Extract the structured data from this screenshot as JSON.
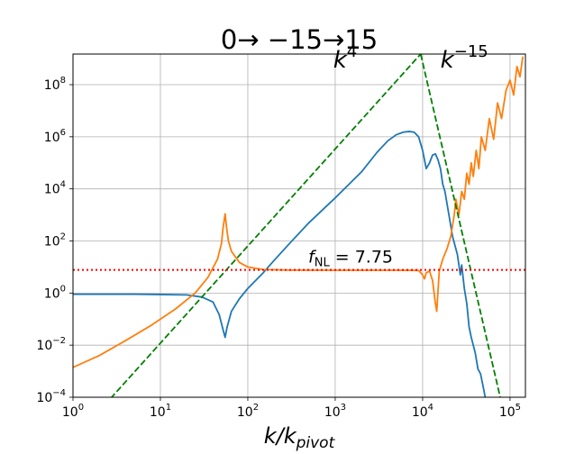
{
  "chart_data": {
    "type": "line",
    "title": "0→ −15→15",
    "xlabel": "k/k",
    "xlabel_sub": "pivot",
    "ylabel": "",
    "xscale": "log",
    "yscale": "log",
    "xlim": [
      1,
      150000
    ],
    "ylim": [
      0.0001,
      1500000000.0
    ],
    "grid": true,
    "x_ticks": [
      {
        "base": "10",
        "exp": "0",
        "value": 1
      },
      {
        "base": "10",
        "exp": "1",
        "value": 10
      },
      {
        "base": "10",
        "exp": "2",
        "value": 100
      },
      {
        "base": "10",
        "exp": "3",
        "value": 1000
      },
      {
        "base": "10",
        "exp": "4",
        "value": 10000
      },
      {
        "base": "10",
        "exp": "5",
        "value": 100000
      }
    ],
    "y_ticks": [
      {
        "base": "10",
        "exp": "−4",
        "value": 0.0001
      },
      {
        "base": "10",
        "exp": "−2",
        "value": 0.01
      },
      {
        "base": "10",
        "exp": "0",
        "value": 1
      },
      {
        "base": "10",
        "exp": "2",
        "value": 100
      },
      {
        "base": "10",
        "exp": "4",
        "value": 10000
      },
      {
        "base": "10",
        "exp": "6",
        "value": 1000000
      },
      {
        "base": "10",
        "exp": "8",
        "value": 100000000
      }
    ],
    "annotations": [
      {
        "name": "annotation-k4",
        "base": "k",
        "exp": "4",
        "x": 1300,
        "y": 450000000
      },
      {
        "name": "annotation-k-15",
        "base": "k",
        "exp": "−15",
        "x": 30000,
        "y": 450000000
      }
    ],
    "fnl_label": {
      "main": "f",
      "sub": "NL",
      "rest": " = 7.75",
      "x": 1500,
      "y": 15
    },
    "series": [
      {
        "color": "#1f77b4",
        "points": [
          [
            1,
            0.9
          ],
          [
            5,
            0.9
          ],
          [
            10,
            0.88
          ],
          [
            20,
            0.85
          ],
          [
            30,
            0.7
          ],
          [
            40,
            0.45
          ],
          [
            47,
            0.15
          ],
          [
            52,
            0.04
          ],
          [
            55,
            0.02
          ],
          [
            58,
            0.05
          ],
          [
            65,
            0.2
          ],
          [
            80,
            0.6
          ],
          [
            100,
            1.5
          ],
          [
            150,
            6
          ],
          [
            200,
            18
          ],
          [
            300,
            80
          ],
          [
            500,
            500
          ],
          [
            1000,
            4500
          ],
          [
            2000,
            45000
          ],
          [
            3000,
            250000
          ],
          [
            4000,
            700000
          ],
          [
            5000,
            1200000
          ],
          [
            6000,
            1500000
          ],
          [
            7000,
            1600000
          ],
          [
            8000,
            1500000
          ],
          [
            9000,
            1000000
          ],
          [
            10000,
            300000
          ],
          [
            11000,
            60000
          ],
          [
            12000,
            100000
          ],
          [
            13000,
            200000
          ],
          [
            14000,
            220000
          ],
          [
            15000,
            130000
          ],
          [
            16000,
            60000
          ],
          [
            17000,
            15000
          ],
          [
            18000,
            8000
          ],
          [
            20000,
            1000
          ],
          [
            22000,
            150
          ],
          [
            25000,
            30
          ],
          [
            27000,
            5
          ],
          [
            28000,
            12
          ],
          [
            30000,
            1.5
          ],
          [
            32000,
            0.4
          ],
          [
            34000,
            0.05
          ],
          [
            36000,
            0.02
          ],
          [
            40000,
            0.005
          ],
          [
            43000,
            0.0012
          ],
          [
            46000,
            0.0008
          ],
          [
            50000,
            0.0002
          ],
          [
            52000,
            0.0001
          ]
        ]
      },
      {
        "color": "#ff7f0e",
        "points": [
          [
            1,
            0.0014
          ],
          [
            2,
            0.004
          ],
          [
            4,
            0.015
          ],
          [
            8,
            0.06
          ],
          [
            15,
            0.25
          ],
          [
            25,
            1
          ],
          [
            35,
            4
          ],
          [
            45,
            20
          ],
          [
            50,
            80
          ],
          [
            52,
            300
          ],
          [
            55,
            1100
          ],
          [
            57,
            350
          ],
          [
            60,
            100
          ],
          [
            65,
            40
          ],
          [
            80,
            15
          ],
          [
            100,
            10
          ],
          [
            150,
            8
          ],
          [
            300,
            7.6
          ],
          [
            1000,
            7.5
          ],
          [
            5000,
            7.5
          ],
          [
            9000,
            7.4
          ],
          [
            10000,
            5
          ],
          [
            10500,
            3.5
          ],
          [
            11000,
            6
          ],
          [
            12000,
            7
          ],
          [
            13000,
            3
          ],
          [
            14000,
            0.4
          ],
          [
            14500,
            0.2
          ],
          [
            15500,
            7
          ],
          [
            17000,
            20
          ],
          [
            19000,
            50
          ],
          [
            21000,
            150
          ],
          [
            23000,
            1000
          ],
          [
            24000,
            4000
          ],
          [
            26000,
            1000
          ],
          [
            28000,
            8000
          ],
          [
            30000,
            4000
          ],
          [
            32000,
            40000
          ],
          [
            34000,
            15000
          ],
          [
            36000,
            100000
          ],
          [
            38000,
            30000
          ],
          [
            41000,
            300000
          ],
          [
            44000,
            60000
          ],
          [
            47000,
            1000000
          ],
          [
            52000,
            300000
          ],
          [
            58000,
            5000000
          ],
          [
            65000,
            800000
          ],
          [
            72000,
            20000000
          ],
          [
            80000,
            5000000
          ],
          [
            90000,
            60000000
          ],
          [
            100000,
            150000000
          ],
          [
            110000,
            40000000
          ],
          [
            120000,
            500000000
          ],
          [
            130000,
            200000000
          ],
          [
            140000,
            1200000000
          ]
        ]
      },
      {
        "color": "#008000",
        "dash": "dashed",
        "points": [
          [
            2.3,
            5e-05
          ],
          [
            9500,
            1500000000
          ]
        ]
      },
      {
        "color": "#008000",
        "dash": "dashed",
        "points": [
          [
            9500,
            1500000000
          ],
          [
            80000,
            6e-05
          ]
        ]
      },
      {
        "color": "#ff0000",
        "dash": "dotted",
        "points": [
          [
            1,
            7.75
          ],
          [
            150000,
            7.75
          ]
        ]
      }
    ]
  }
}
